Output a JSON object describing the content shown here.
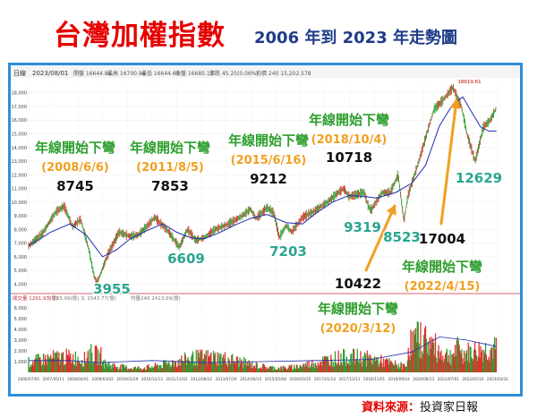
{
  "header": {
    "title": "台灣加權指數",
    "subtitle": "2006 年到 2023 年走勢圖"
  },
  "chart_data": {
    "type": "line",
    "info_bar": {
      "left_tag": "日線",
      "date": "2023/08/01",
      "fields": [
        "開盤 16644.85",
        "最高 16700.94",
        "最低 16644.65",
        "收盤 16685.15",
        "漲跌 45.25(0.06%)",
        "均價 240 15,202.578"
      ]
    },
    "y_ticks": [
      "18,000",
      "17,000",
      "16,000",
      "15,000",
      "14,000",
      "13,000",
      "12,000",
      "11,000",
      "10,000",
      "9,000",
      "8,000",
      "7,000",
      "6,000",
      "5,000",
      "4,000"
    ],
    "y_range": [
      3700,
      18700
    ],
    "volume_bar": [
      "成交量 1291.93(億)",
      "ㄅ 283.09(億)",
      "ㄆ 1543.77(億)",
      "均量240 2413.09(億)"
    ],
    "volume_ticks": [
      "6,000",
      "5,000",
      "4,000",
      "3,000",
      "2,000",
      "1,000"
    ],
    "x_ticks": [
      "2006/07/05",
      "2007/05/11",
      "2008/04/01",
      "2009/03/02",
      "2010/01/29",
      "2010/12/13",
      "2011/11/02",
      "2012/08/22",
      "2013/07/29",
      "2014/06/15",
      "2015/05/08",
      "2016/03/25",
      "2017/01/14",
      "2017/12/11",
      "2018/11/01",
      "2019/09/24",
      "2020/08/13",
      "2021/07/01",
      "2022/05/16",
      "2023/03/31"
    ],
    "peak_label": "18619.61",
    "series": [
      {
        "values": [
          [
            2006.5,
            6800
          ],
          [
            2007.0,
            7700
          ],
          [
            2007.5,
            9300
          ],
          [
            2007.8,
            9700
          ],
          [
            2008.1,
            8200
          ],
          [
            2008.4,
            8745
          ],
          [
            2008.7,
            6500
          ],
          [
            2008.9,
            4500
          ],
          [
            2009.0,
            4100
          ],
          [
            2009.4,
            6200
          ],
          [
            2009.8,
            7800
          ],
          [
            2010.2,
            7500
          ],
          [
            2010.5,
            7600
          ],
          [
            2010.9,
            8400
          ],
          [
            2011.1,
            8900
          ],
          [
            2011.6,
            7853
          ],
          [
            2011.9,
            7000
          ],
          [
            2012.0,
            6700
          ],
          [
            2012.3,
            8000
          ],
          [
            2012.6,
            7200
          ],
          [
            2012.9,
            7400
          ],
          [
            2013.3,
            8000
          ],
          [
            2013.8,
            8400
          ],
          [
            2014.3,
            9000
          ],
          [
            2014.6,
            9500
          ],
          [
            2014.8,
            8800
          ],
          [
            2015.2,
            9600
          ],
          [
            2015.45,
            9212
          ],
          [
            2015.65,
            7400
          ],
          [
            2015.9,
            8300
          ],
          [
            2016.1,
            7800
          ],
          [
            2016.5,
            8900
          ],
          [
            2016.9,
            9300
          ],
          [
            2017.4,
            10000
          ],
          [
            2017.8,
            10700
          ],
          [
            2018.0,
            11000
          ],
          [
            2018.2,
            10400
          ],
          [
            2018.75,
            10718
          ],
          [
            2018.9,
            9700
          ],
          [
            2019.0,
            9400
          ],
          [
            2019.4,
            10700
          ],
          [
            2019.7,
            10700
          ],
          [
            2019.99,
            12000
          ],
          [
            2020.2,
            8600
          ],
          [
            2020.35,
            10500
          ],
          [
            2020.7,
            12700
          ],
          [
            2020.99,
            14700
          ],
          [
            2021.3,
            16800
          ],
          [
            2021.6,
            17400
          ],
          [
            2021.99,
            18400
          ],
          [
            2022.3,
            17004
          ],
          [
            2022.5,
            15000
          ],
          [
            2022.8,
            13000
          ],
          [
            2022.95,
            14200
          ],
          [
            2023.1,
            15500
          ],
          [
            2023.35,
            16000
          ],
          [
            2023.58,
            16900
          ]
        ]
      },
      {
        "values": [
          [
            2006.5,
            6800
          ],
          [
            2007.3,
            7800
          ],
          [
            2008.0,
            8400
          ],
          [
            2008.6,
            7600
          ],
          [
            2009.2,
            6000
          ],
          [
            2009.7,
            6500
          ],
          [
            2010.2,
            7300
          ],
          [
            2010.8,
            7900
          ],
          [
            2011.4,
            8400
          ],
          [
            2011.9,
            7800
          ],
          [
            2012.4,
            7400
          ],
          [
            2012.9,
            7300
          ],
          [
            2013.5,
            7800
          ],
          [
            2014.0,
            8300
          ],
          [
            2014.6,
            8800
          ],
          [
            2015.2,
            9100
          ],
          [
            2015.9,
            8500
          ],
          [
            2016.5,
            8400
          ],
          [
            2017.0,
            9200
          ],
          [
            2017.6,
            10000
          ],
          [
            2018.2,
            10500
          ],
          [
            2018.8,
            10400
          ],
          [
            2019.2,
            10300
          ],
          [
            2019.9,
            10700
          ],
          [
            2020.5,
            11400
          ],
          [
            2020.99,
            12700
          ],
          [
            2021.5,
            15600
          ],
          [
            2022.0,
            17200
          ],
          [
            2022.35,
            17700
          ],
          [
            2022.7,
            16500
          ],
          [
            2023.0,
            15500
          ],
          [
            2023.3,
            15200
          ],
          [
            2023.58,
            15200
          ]
        ]
      }
    ],
    "annotations": [
      {
        "text": "年線開始下彎",
        "color": "#2e9e2e"
      },
      {
        "text": "(2008/6/6)",
        "color": "#f0a020"
      },
      {
        "text": "8745",
        "color": "#111111"
      },
      {
        "text": "年線開始下彎",
        "color": "#2e9e2e"
      },
      {
        "text": "(2011/8/5)",
        "color": "#f0a020"
      },
      {
        "text": "7853",
        "color": "#111111"
      },
      {
        "text": "年線開始下彎",
        "color": "#2e9e2e"
      },
      {
        "text": "(2015/6/16)",
        "color": "#f0a020"
      },
      {
        "text": "9212",
        "color": "#111111"
      },
      {
        "text": "年線開始下彎",
        "color": "#2e9e2e"
      },
      {
        "text": "(2018/10/4)",
        "color": "#f0a020"
      },
      {
        "text": "10718",
        "color": "#111111"
      },
      {
        "text": "3955",
        "color": "#2aa58f"
      },
      {
        "text": "6609",
        "color": "#2aa58f"
      },
      {
        "text": "7203",
        "color": "#2aa58f"
      },
      {
        "text": "9319",
        "color": "#2aa58f"
      },
      {
        "text": "8523",
        "color": "#2aa58f"
      },
      {
        "text": "12629",
        "color": "#2aa58f"
      },
      {
        "text": "17004",
        "color": "#111111"
      },
      {
        "text": "年線開始下彎",
        "color": "#2e9e2e"
      },
      {
        "text": "(2022/4/15)",
        "color": "#f0a020"
      },
      {
        "text": "10422",
        "color": "#111111"
      },
      {
        "text": "年線開始下彎",
        "color": "#2e9e2e"
      },
      {
        "text": "(2020/3/12)",
        "color": "#f0a020"
      }
    ],
    "arrow_color": "#f0a020",
    "price_color": "#2e9e2e",
    "ma_color": "#1f2fb0"
  },
  "footer": {
    "source_label": "資料來源：",
    "source_value": "投資家日報"
  }
}
